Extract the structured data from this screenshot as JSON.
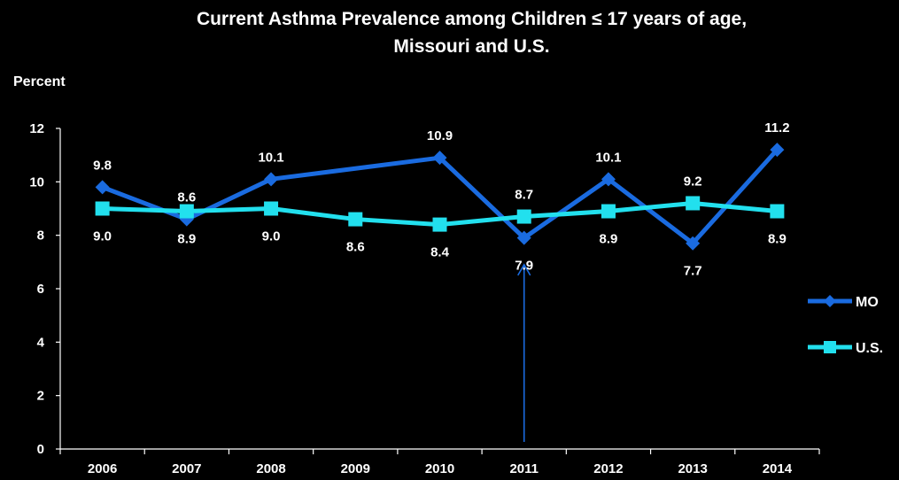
{
  "chart_data": {
    "type": "line",
    "title": [
      "Current Asthma Prevalence among Children ≤ 17 years of age,",
      "Missouri and U.S."
    ],
    "ylabel": "Percent",
    "xlabel": "",
    "ylim": [
      0,
      12
    ],
    "yticks": [
      0,
      2,
      4,
      6,
      8,
      10,
      12
    ],
    "categories": [
      "2006",
      "2007",
      "2008",
      "2009",
      "2010",
      "2011",
      "2012",
      "2013",
      "2014"
    ],
    "legend_position": "right",
    "grid": false,
    "series": [
      {
        "name": "MO",
        "color": "#1a6be0",
        "marker": "diamond",
        "values": [
          9.8,
          8.6,
          10.1,
          null,
          10.9,
          7.9,
          10.1,
          7.7,
          11.2
        ],
        "labels": [
          "9.8",
          "8.6",
          "10.1",
          null,
          "10.9",
          "7.9",
          "10.1",
          "7.7",
          "11.2"
        ],
        "label_pos": [
          "above",
          "above",
          "above",
          null,
          "above",
          "below",
          "above",
          "below",
          "above"
        ]
      },
      {
        "name": "U.S.",
        "color": "#22e0ee",
        "marker": "square",
        "values": [
          9.0,
          8.9,
          9.0,
          8.6,
          8.4,
          8.7,
          8.9,
          9.2,
          8.9
        ],
        "labels": [
          "9.0",
          "8.9",
          "9.0",
          "8.6",
          "8.4",
          "8.7",
          "8.9",
          "9.2",
          "8.9"
        ],
        "label_pos": [
          "below",
          "below",
          "below",
          "below",
          "below",
          "above",
          "below",
          "above",
          "below"
        ]
      }
    ],
    "annotation": {
      "type": "arrow",
      "category": "2011",
      "color": "#1a6be0"
    }
  }
}
